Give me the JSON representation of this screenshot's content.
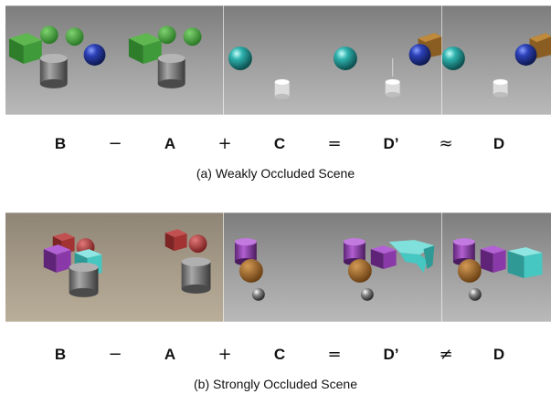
{
  "rows": [
    {
      "equation": [
        "B",
        "−",
        "A",
        "+",
        "C",
        "=",
        "D’",
        "≈",
        "D"
      ],
      "caption": "(a) Weakly Occluded Scene",
      "panels": [
        {
          "role": "B",
          "objects": [
            "green-cube",
            "green-sphere",
            "green-sphere",
            "blue-metal-sphere",
            "gray-metal-cylinder"
          ]
        },
        {
          "role": "A",
          "objects": [
            "green-cube",
            "green-sphere",
            "green-sphere",
            "gray-metal-cylinder"
          ]
        },
        {
          "role": "C",
          "objects": [
            "cyan-metal-sphere",
            "white-cylinder"
          ]
        },
        {
          "role": "D’",
          "objects": [
            "cyan-metal-sphere",
            "blue-metal-sphere",
            "brown-metal-cube",
            "white-cylinder"
          ]
        },
        {
          "role": "D",
          "objects": [
            "cyan-metal-sphere",
            "blue-metal-sphere",
            "brown-metal-cube",
            "white-cylinder"
          ]
        }
      ]
    },
    {
      "equation": [
        "B",
        "−",
        "A",
        "+",
        "C",
        "=",
        "D’",
        "≠",
        "D"
      ],
      "caption": "(b) Strongly Occluded Scene",
      "panels": [
        {
          "role": "B",
          "objects": [
            "red-cube",
            "red-sphere",
            "purple-cube",
            "cyan-cube",
            "gray-metal-cylinder"
          ]
        },
        {
          "role": "A",
          "objects": [
            "red-cube",
            "red-sphere",
            "gray-metal-cylinder"
          ]
        },
        {
          "role": "C",
          "objects": [
            "purple-cylinder",
            "brown-sphere",
            "small-metal-sphere"
          ]
        },
        {
          "role": "D’",
          "objects": [
            "purple-cylinder",
            "purple-cube",
            "distorted-cyan-cube",
            "brown-sphere",
            "small-metal-sphere"
          ]
        },
        {
          "role": "D",
          "objects": [
            "purple-cylinder",
            "purple-cube",
            "cyan-cube",
            "brown-sphere",
            "small-metal-sphere"
          ]
        }
      ]
    }
  ],
  "colors": {
    "background_gray": "#8c8c8c",
    "background_tan": "#9a8f7e",
    "green": "#3f9a3a",
    "blue_metal": "#2a3fa8",
    "cyan_metal": "#2fa7a5",
    "brown_metal": "#9a6a2a",
    "gray_metal": "#8a8a8a",
    "red": "#a83434",
    "purple": "#8a3aa8",
    "cyan": "#47c7c2",
    "brown": "#a06a2e"
  }
}
